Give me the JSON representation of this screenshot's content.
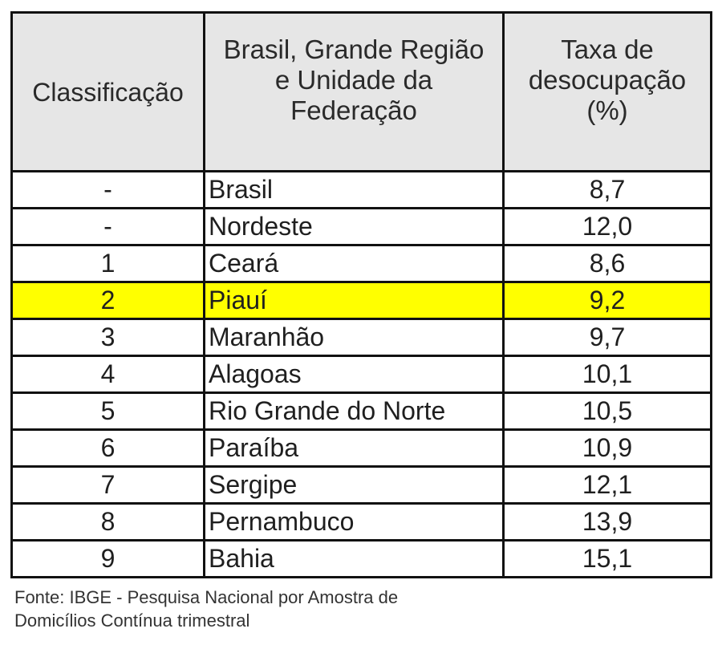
{
  "table": {
    "headers": {
      "classification": "Classificação",
      "region": [
        "Brasil, Grande Região",
        "e Unidade da",
        "Federação"
      ],
      "rate": [
        "Taxa de",
        "desocupação",
        "(%)"
      ]
    },
    "rows": [
      {
        "rank": "-",
        "place": "Brasil",
        "rate": "8,7"
      },
      {
        "rank": "-",
        "place": "Nordeste",
        "rate": "12,0"
      },
      {
        "rank": "1",
        "place": "Ceará",
        "rate": "8,6"
      },
      {
        "rank": "2",
        "place": "Piauí",
        "rate": "9,2"
      },
      {
        "rank": "3",
        "place": "Maranhão",
        "rate": "9,7"
      },
      {
        "rank": "4",
        "place": "Alagoas",
        "rate": "10,1"
      },
      {
        "rank": "5",
        "place": "Rio Grande do Norte",
        "rate": "10,5"
      },
      {
        "rank": "6",
        "place": "Paraíba",
        "rate": "10,9"
      },
      {
        "rank": "7",
        "place": "Sergipe",
        "rate": "12,1"
      },
      {
        "rank": "8",
        "place": "Pernambuco",
        "rate": "13,9"
      },
      {
        "rank": "9",
        "place": "Bahia",
        "rate": "15,1"
      }
    ],
    "highlight_color": "#ffff00",
    "header_background": "#e6e6e6"
  },
  "source": {
    "line1": "Fonte: IBGE - Pesquisa Nacional por Amostra de",
    "line2": "Domicílios Contínua trimestral"
  }
}
